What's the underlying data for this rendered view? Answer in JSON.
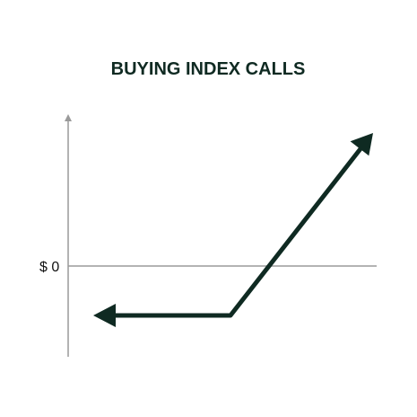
{
  "title": "BUYING INDEX CALLS",
  "y_axis": {
    "zero_label": "$ 0"
  },
  "colors": {
    "payoff_line": "#0f2a22",
    "axis": "#9a9a9a",
    "title": "#0f2a22",
    "label": "#111111",
    "background": "#ffffff"
  },
  "payoff": {
    "shape": "long-call",
    "loss_region": "flat-below-zero",
    "profit_region": "rises-unbounded"
  }
}
